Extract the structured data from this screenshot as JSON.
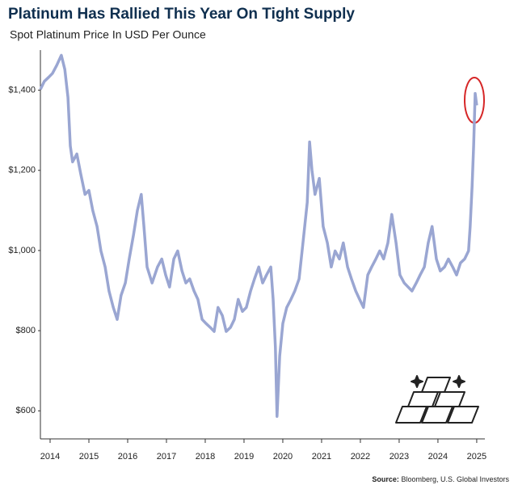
{
  "chart_data": {
    "type": "line",
    "title": "Platinum Has Rallied This Year On Tight Supply",
    "subtitle": "Spot Platinum Price In USD Per Ounce",
    "source_label": "Source:",
    "source": "Bloomberg, U.S. Global Investors",
    "x": [
      2013.75,
      2013.85,
      2013.96,
      2014.06,
      2014.17,
      2014.29,
      2014.38,
      2014.46,
      2014.52,
      2014.58,
      2014.69,
      2014.79,
      2014.9,
      2015.0,
      2015.1,
      2015.21,
      2015.31,
      2015.42,
      2015.52,
      2015.63,
      2015.73,
      2015.83,
      2015.94,
      2016.04,
      2016.15,
      2016.25,
      2016.35,
      2016.42,
      2016.5,
      2016.63,
      2016.77,
      2016.88,
      2016.98,
      2017.08,
      2017.19,
      2017.29,
      2017.4,
      2017.5,
      2017.6,
      2017.71,
      2017.81,
      2017.92,
      2018.02,
      2018.13,
      2018.23,
      2018.33,
      2018.44,
      2018.54,
      2018.65,
      2018.75,
      2018.85,
      2018.96,
      2019.06,
      2019.17,
      2019.27,
      2019.38,
      2019.48,
      2019.58,
      2019.69,
      2019.75,
      2019.81,
      2019.85,
      2019.92,
      2020.0,
      2020.1,
      2020.21,
      2020.31,
      2020.42,
      2020.52,
      2020.63,
      2020.69,
      2020.75,
      2020.83,
      2020.94,
      2021.04,
      2021.15,
      2021.25,
      2021.35,
      2021.46,
      2021.56,
      2021.67,
      2021.77,
      2021.88,
      2021.98,
      2022.08,
      2022.19,
      2022.29,
      2022.4,
      2022.5,
      2022.6,
      2022.71,
      2022.81,
      2022.92,
      2023.02,
      2023.13,
      2023.23,
      2023.33,
      2023.44,
      2023.54,
      2023.65,
      2023.75,
      2023.85,
      2023.96,
      2024.06,
      2024.17,
      2024.27,
      2024.38,
      2024.48,
      2024.58,
      2024.69,
      2024.79,
      2024.83,
      2024.88,
      2024.92,
      2024.96,
      2025.0
    ],
    "series": [
      {
        "name": "Spot Platinum",
        "color": "#9aa6d2",
        "values": [
          1402,
          1422,
          1432,
          1442,
          1462,
          1487,
          1452,
          1382,
          1261,
          1221,
          1241,
          1191,
          1140,
          1150,
          1100,
          1060,
          999,
          959,
          899,
          858,
          828,
          888,
          919,
          979,
          1039,
          1100,
          1140,
          1060,
          959,
          919,
          959,
          979,
          939,
          909,
          979,
          999,
          949,
          919,
          929,
          899,
          878,
          828,
          818,
          808,
          798,
          858,
          838,
          798,
          808,
          828,
          878,
          848,
          858,
          899,
          929,
          959,
          919,
          939,
          959,
          878,
          758,
          586,
          737,
          818,
          858,
          878,
          899,
          929,
          1019,
          1120,
          1271,
          1201,
          1140,
          1180,
          1060,
          1019,
          959,
          999,
          979,
          1019,
          959,
          929,
          899,
          878,
          858,
          939,
          959,
          979,
          999,
          979,
          1019,
          1090,
          1019,
          939,
          919,
          909,
          899,
          919,
          939,
          959,
          1019,
          1060,
          979,
          949,
          959,
          979,
          959,
          939,
          969,
          979,
          999,
          1060,
          1160,
          1261,
          1392,
          1362
        ]
      }
    ],
    "xlim": [
      2013.75,
      2025.21
    ],
    "xticks": [
      2014,
      2015,
      2016,
      2017,
      2018,
      2019,
      2020,
      2021,
      2022,
      2023,
      2024,
      2025
    ],
    "ylim": [
      530,
      1500
    ],
    "yticks": [
      {
        "value": 600,
        "label": "$600"
      },
      {
        "value": 800,
        "label": "$800"
      },
      {
        "value": 1000,
        "label": "$1,000"
      },
      {
        "value": 1200,
        "label": "$1,200"
      },
      {
        "value": 1400,
        "label": "$1,400"
      }
    ],
    "grid": false
  }
}
